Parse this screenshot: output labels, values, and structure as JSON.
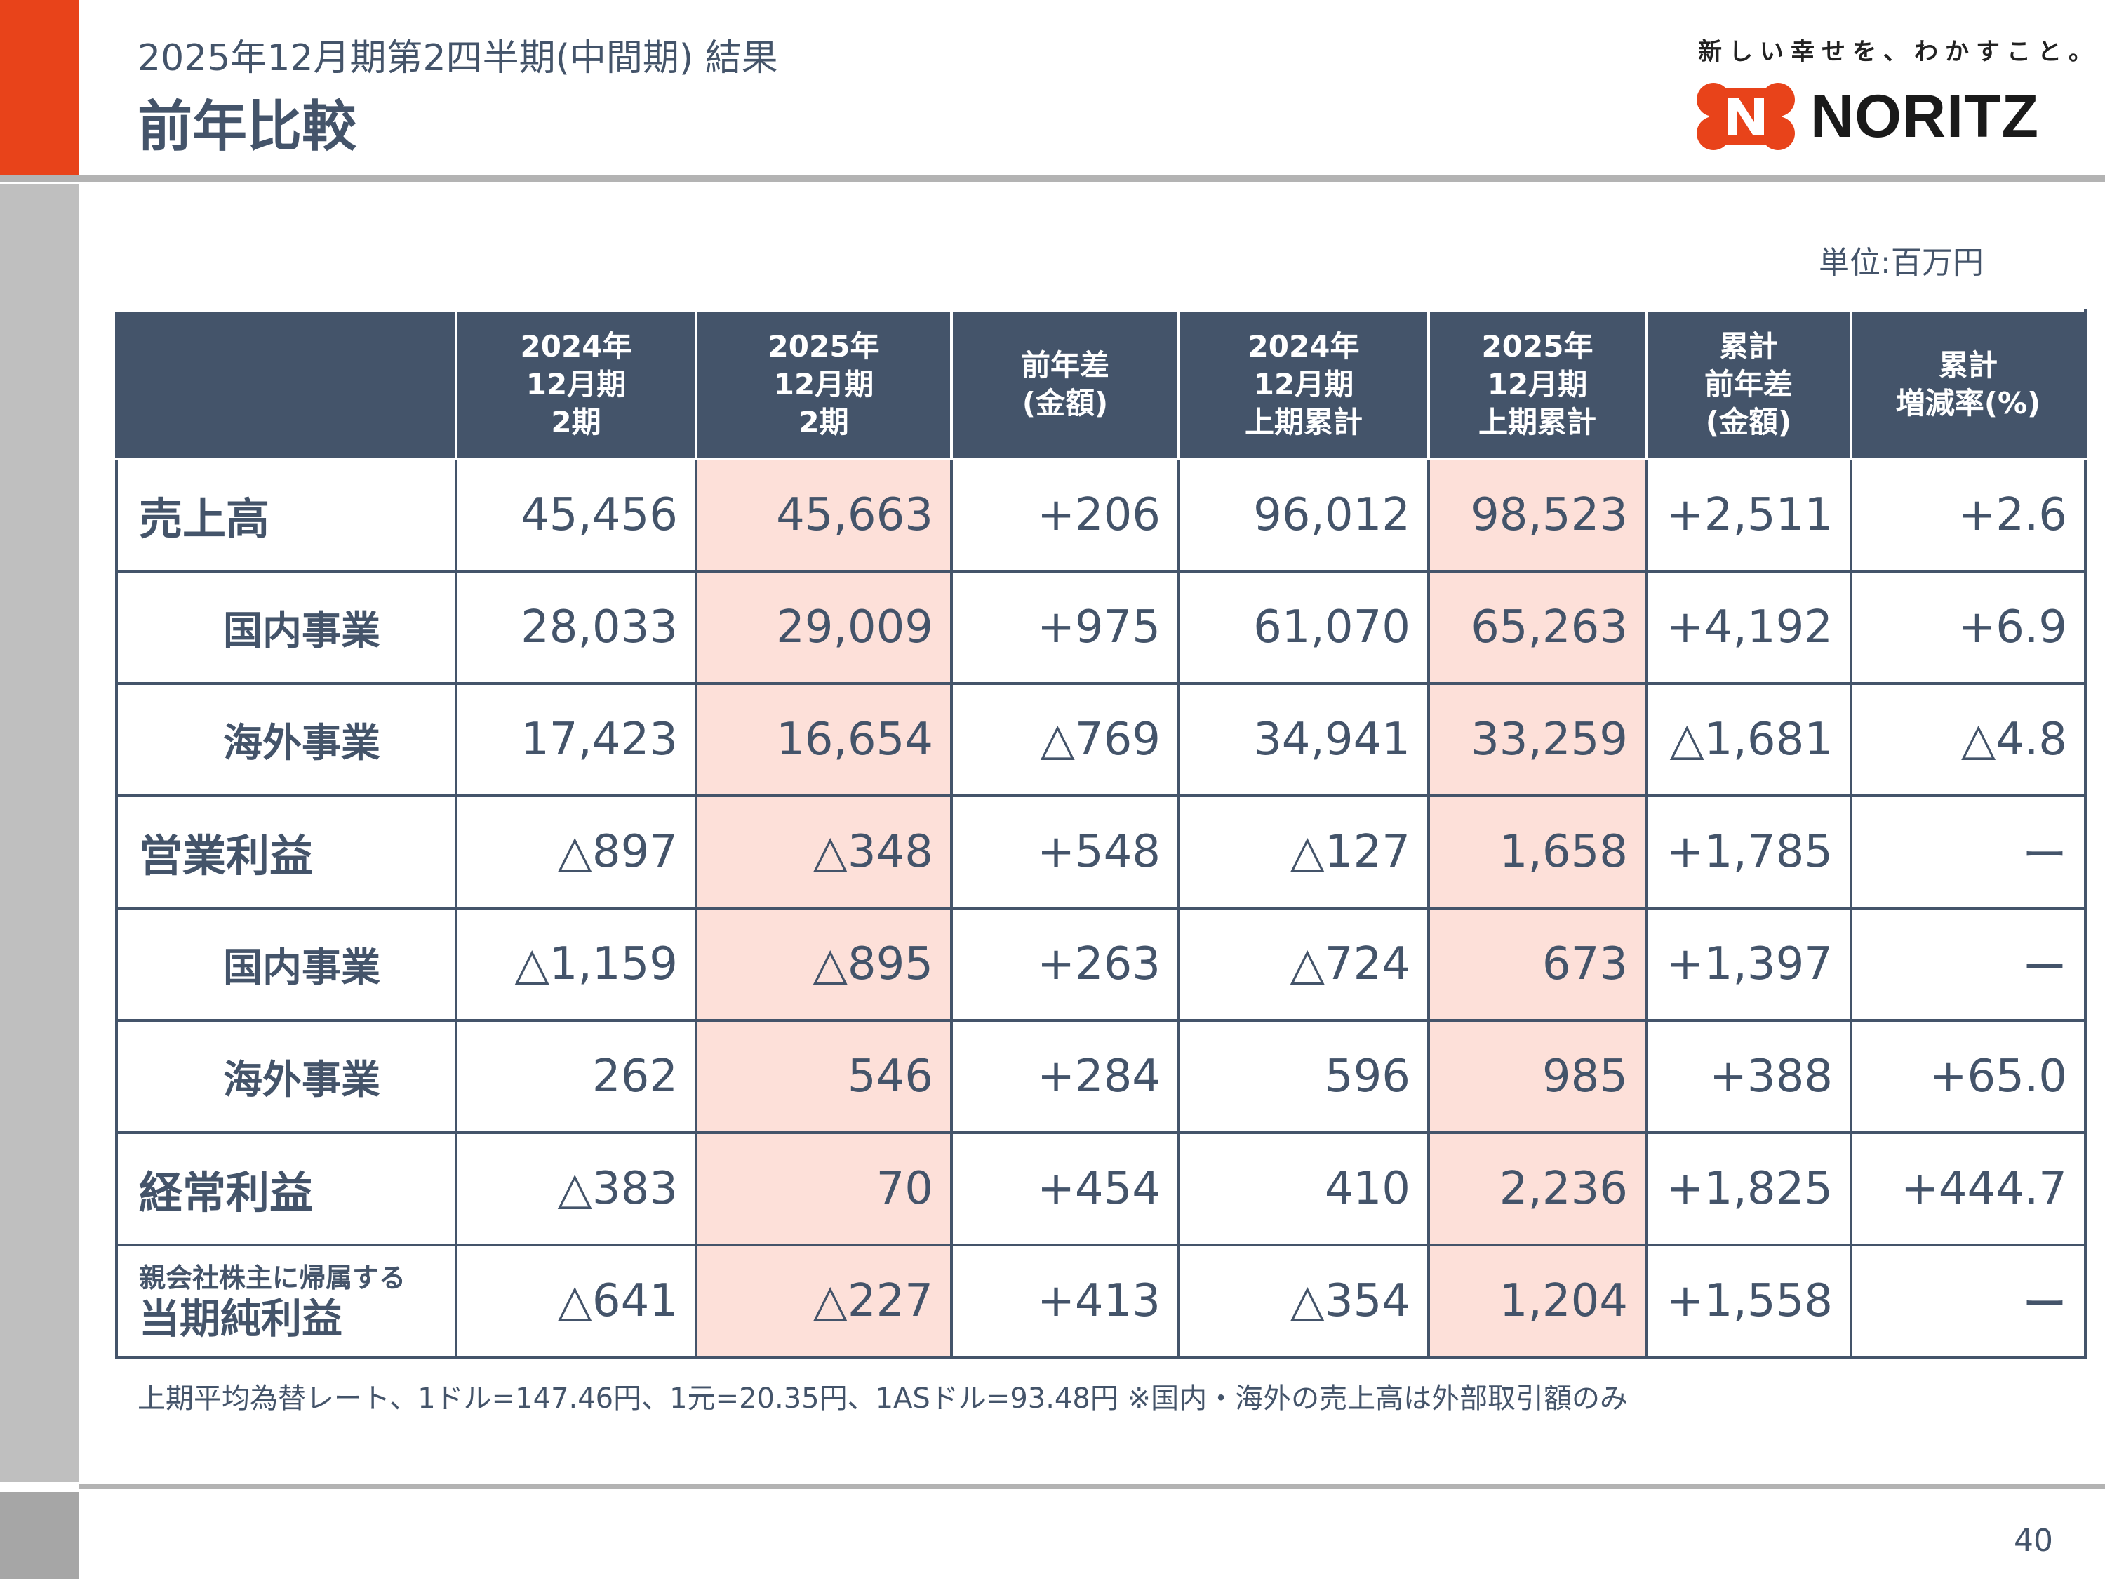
{
  "header": {
    "subtitle": "2025年12月期第2四半期(中間期) 結果",
    "title": "前年比較",
    "tagline": "新しい幸せを、わかすこと。",
    "logo_text": "NORITZ",
    "brand_color": "#e8431a"
  },
  "unit": "単位:百万円",
  "table": {
    "columns": [
      "",
      "2024年\n12月期\n2期",
      "2025年\n12月期\n2期",
      "前年差\n(金額)",
      "2024年\n12月期\n上期累計",
      "2025年\n12月期\n上期累計",
      "累計\n前年差\n(金額)",
      "累計\n増減率(%)"
    ],
    "rows": [
      {
        "label": "売上高",
        "values": [
          "45,456",
          "45,663",
          "+206",
          "96,012",
          "98,523",
          "+2,511",
          "+2.6"
        ]
      },
      {
        "label": "国内事業",
        "values": [
          "28,033",
          "29,009",
          "+975",
          "61,070",
          "65,263",
          "+4,192",
          "+6.9"
        ]
      },
      {
        "label": "海外事業",
        "values": [
          "17,423",
          "16,654",
          "△769",
          "34,941",
          "33,259",
          "△1,681",
          "△4.8"
        ]
      },
      {
        "label": "営業利益",
        "values": [
          "△897",
          "△348",
          "+548",
          "△127",
          "1,658",
          "+1,785",
          "ー"
        ]
      },
      {
        "label": "国内事業",
        "values": [
          "△1,159",
          "△895",
          "+263",
          "△724",
          "673",
          "+1,397",
          "ー"
        ]
      },
      {
        "label": "海外事業",
        "values": [
          "262",
          "546",
          "+284",
          "596",
          "985",
          "+388",
          "+65.0"
        ]
      },
      {
        "label": "経常利益",
        "values": [
          "△383",
          "70",
          "+454",
          "410",
          "2,236",
          "+1,825",
          "+444.7"
        ]
      },
      {
        "label_small": "親会社株主に帰属する",
        "label": "当期純利益",
        "values": [
          "△641",
          "△227",
          "+413",
          "△354",
          "1,204",
          "+1,558",
          "ー"
        ]
      }
    ]
  },
  "note": "上期平均為替レート、1ドル=147.46円、1元=20.35円、1ASドル=93.48円 ※国内・海外の売上高は外部取引額のみ",
  "page_number": "40"
}
